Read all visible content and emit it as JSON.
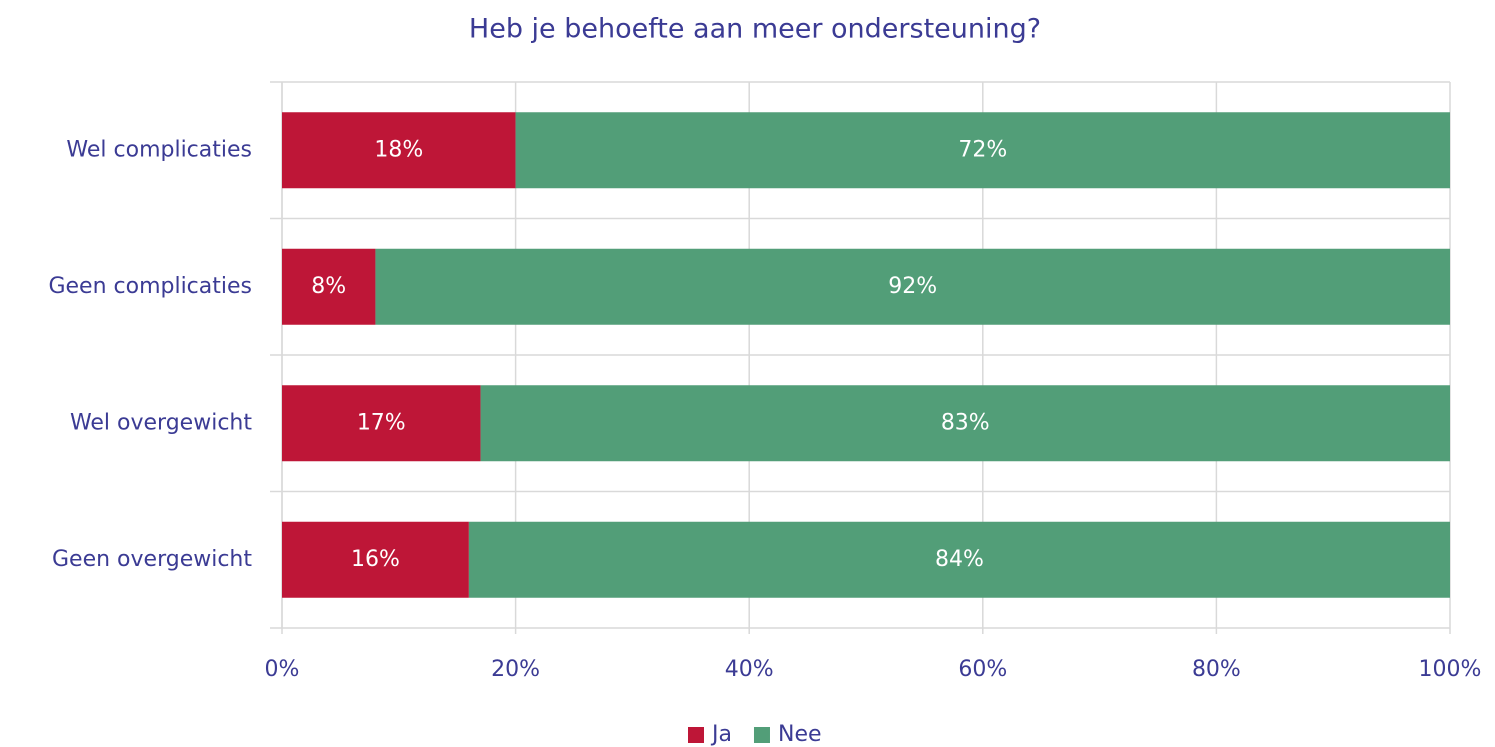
{
  "chart_data": {
    "type": "bar",
    "orientation": "horizontal",
    "stacking": "percent",
    "title": "Heb je behoefte aan meer ondersteuning?",
    "categories": [
      "Wel complicaties",
      "Geen complicaties",
      "Wel overgewicht",
      "Geen overgewicht"
    ],
    "series": [
      {
        "name": "Ja",
        "color": "#be1637",
        "values": [
          18,
          8,
          17,
          16
        ],
        "value_labels": [
          "18%",
          "8%",
          "17%",
          "16%"
        ]
      },
      {
        "name": "Nee",
        "color": "#529e78",
        "values": [
          72,
          92,
          83,
          84
        ],
        "value_labels": [
          "72%",
          "92%",
          "83%",
          "84%"
        ]
      }
    ],
    "xlim": [
      0,
      100
    ],
    "xticks": [
      {
        "value": 0,
        "label": "0%"
      },
      {
        "value": 20,
        "label": "20%"
      },
      {
        "value": 40,
        "label": "40%"
      },
      {
        "value": 60,
        "label": "60%"
      },
      {
        "value": 80,
        "label": "80%"
      },
      {
        "value": 100,
        "label": "100%"
      }
    ],
    "grid": true,
    "legend": "bottom"
  }
}
